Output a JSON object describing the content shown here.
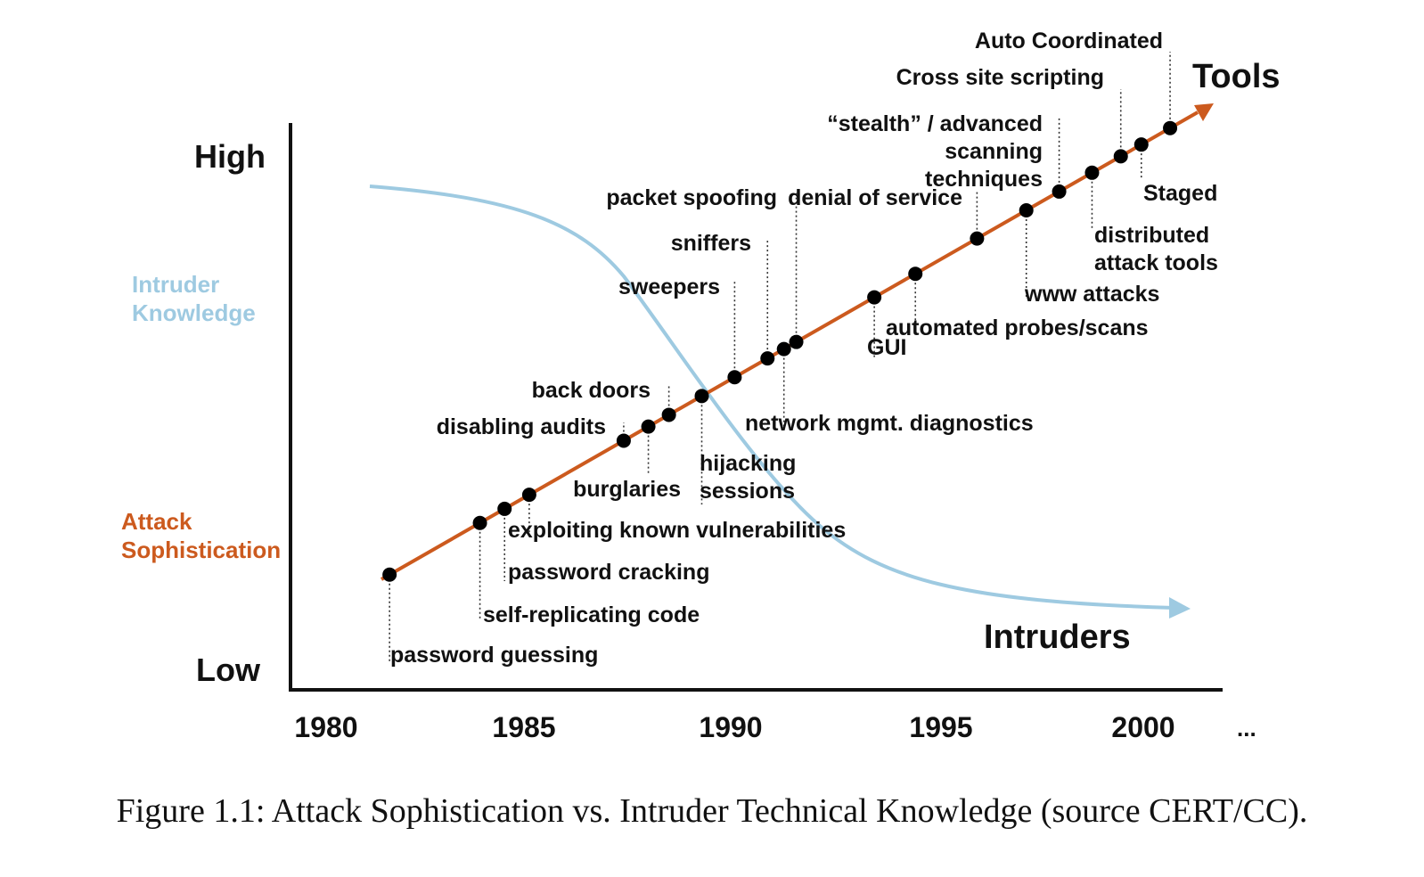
{
  "chart_data": {
    "type": "line",
    "x_ticks": [
      "1980",
      "1985",
      "1990",
      "1995",
      "2000"
    ],
    "x_continuation": "...",
    "y_high_label": "High",
    "y_low_label": "Low",
    "legend": {
      "knowledge": [
        "Intruder",
        "Knowledge"
      ],
      "sophistication": [
        "Attack",
        "Sophistication"
      ]
    },
    "series": [
      {
        "name": "Tools",
        "color": "#cc5a1e",
        "points": [
          {
            "year": 1981.5,
            "label": [
              "password guessing"
            ]
          },
          {
            "year": 1983.7,
            "label": [
              "self-replicating code"
            ]
          },
          {
            "year": 1984.3,
            "label": [
              "password cracking"
            ]
          },
          {
            "year": 1984.9,
            "label": [
              "exploiting known vulnerabilities"
            ]
          },
          {
            "year": 1987.2,
            "label": [
              "disabling audits"
            ]
          },
          {
            "year": 1987.8,
            "label": [
              "burglaries"
            ]
          },
          {
            "year": 1988.3,
            "label": [
              "back doors"
            ]
          },
          {
            "year": 1989.1,
            "label": [
              "hijacking",
              "sessions"
            ]
          },
          {
            "year": 1989.9,
            "label": [
              "sweepers"
            ]
          },
          {
            "year": 1990.7,
            "label": [
              "sniffers"
            ]
          },
          {
            "year": 1991.1,
            "label": [
              "network mgmt. diagnostics"
            ]
          },
          {
            "year": 1991.4,
            "label": [
              "packet spoofing"
            ]
          },
          {
            "year": 1993.3,
            "label": [
              "GUI"
            ]
          },
          {
            "year": 1994.3,
            "label": [
              "automated probes/scans"
            ]
          },
          {
            "year": 1995.8,
            "label": [
              "denial of service"
            ]
          },
          {
            "year": 1997.0,
            "label": [
              "www attacks"
            ]
          },
          {
            "year": 1997.8,
            "label": [
              "“stealth” / advanced",
              "scanning",
              "techniques"
            ]
          },
          {
            "year": 1998.6,
            "label": [
              "distributed",
              "attack tools"
            ]
          },
          {
            "year": 1999.3,
            "label": [
              "Cross site scripting"
            ]
          },
          {
            "year": 1999.8,
            "label": [
              "Staged"
            ]
          },
          {
            "year": 2000.5,
            "label": [
              "Auto Coordinated"
            ]
          }
        ]
      },
      {
        "name": "Intruders",
        "color": "#9ecae1"
      }
    ]
  },
  "caption": "Figure 1.1: Attack Sophistication vs. Intruder Technical Knowledge (source CERT/CC)."
}
